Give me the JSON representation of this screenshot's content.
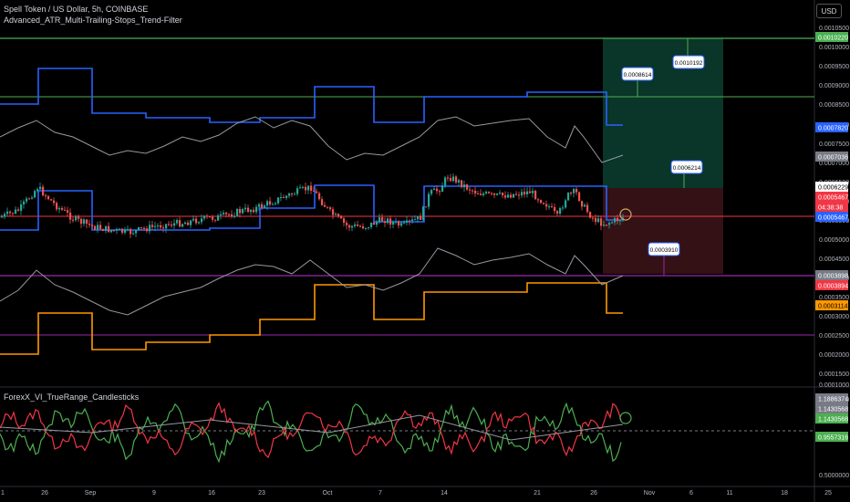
{
  "header": {
    "symbol_line": "Spell Token / US Dollar, 5h, COINBASE",
    "indicator_line": "Advanced_ATR_Multi-Trailing-Stops_Trend-Filter"
  },
  "lower_pane": {
    "title": "ForexX_VI_TrueRange_Candlesticks"
  },
  "currency_button": "USD",
  "price_axis": {
    "ticks": [
      "0.0010500",
      "0.0010000",
      "0.0009500",
      "0.0009000",
      "0.0008500",
      "0.0008000",
      "0.0007500",
      "0.0007000",
      "0.0006500",
      "0.0006000",
      "0.0005500",
      "0.0005000",
      "0.0004500",
      "0.0004000",
      "0.0003500",
      "0.0003000",
      "0.0002500",
      "0.0002000",
      "0.0001500",
      "0.0001000"
    ],
    "tags": [
      {
        "text": "0.0010220",
        "bg": "#4caf50",
        "fg": "#ffffff"
      },
      {
        "text": "0.0007820",
        "bg": "#2962ff",
        "fg": "#ffffff"
      },
      {
        "text": "0.0007036",
        "bg": "#787b86",
        "fg": "#ffffff"
      },
      {
        "text": "0.0006229",
        "bg": "#ffffff",
        "fg": "#000000"
      },
      {
        "text": "0.0005467",
        "bg": "#f23645",
        "fg": "#ffffff"
      },
      {
        "text": "04:38:38",
        "bg": "#f23645",
        "fg": "#ffffff"
      },
      {
        "text": "0.0005467",
        "bg": "#2962ff",
        "fg": "#ffffff"
      },
      {
        "text": "0.0003898",
        "bg": "#787b86",
        "fg": "#ffffff"
      },
      {
        "text": "0.0003894",
        "bg": "#f23645",
        "fg": "#ffffff"
      },
      {
        "text": "0.0003114",
        "bg": "#ff9800",
        "fg": "#000000"
      }
    ]
  },
  "lower_axis": {
    "ticks": [
      "1.5000000",
      "0.5000000"
    ],
    "tags": [
      {
        "text": "1.1886374",
        "bg": "#787b86",
        "fg": "#ffffff"
      },
      {
        "text": "1.1430568",
        "bg": "#787b86",
        "fg": "#ffffff"
      },
      {
        "text": "1.1430568",
        "bg": "#4caf50",
        "fg": "#ffffff"
      },
      {
        "text": "0.9557316",
        "bg": "#4caf50",
        "fg": "#ffffff"
      }
    ]
  },
  "time_axis": [
    "1",
    "26",
    "Sep",
    "9",
    "16",
    "23",
    "Oct",
    "7",
    "14",
    "21",
    "26",
    "Nov",
    "6",
    "11",
    "18",
    "25"
  ],
  "callouts": [
    "0.0010192",
    "0.0008614",
    "0.0006214",
    "0.0003910"
  ],
  "colors": {
    "up": "#26a69a",
    "down": "#ef5350",
    "trail_blue": "#2962ff",
    "trail_orange": "#ff9800",
    "trail_purple": "#9c27b0",
    "green_line": "#4caf50",
    "red_line": "#f23645",
    "grey": "#787b86"
  }
}
